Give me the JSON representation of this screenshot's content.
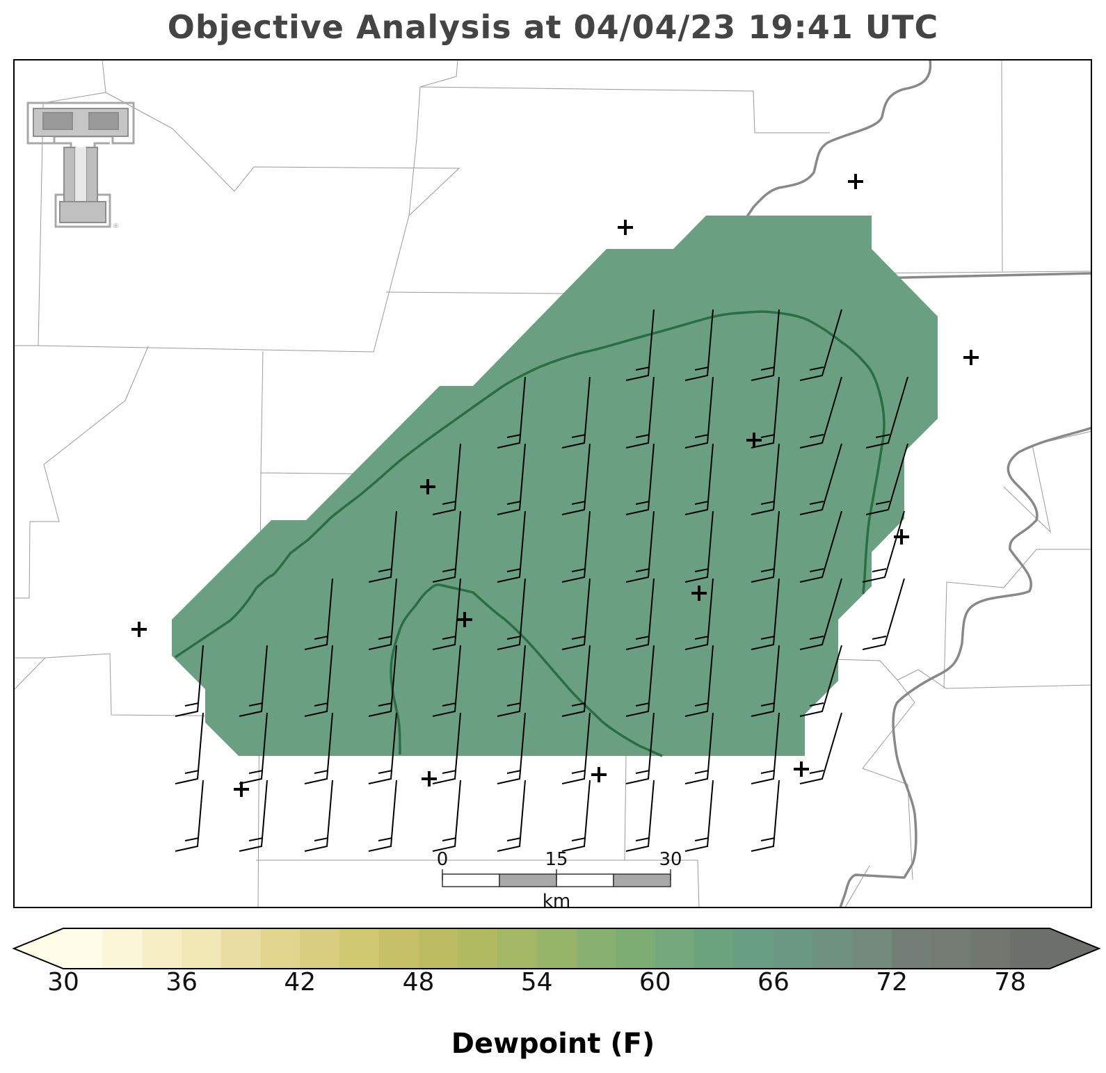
{
  "title": "Objective Analysis at 04/04/23 19:41 UTC",
  "colorbar": {
    "label": "Dewpoint (F)",
    "ticks": [
      "30",
      "36",
      "42",
      "48",
      "54",
      "60",
      "66",
      "72",
      "78"
    ],
    "min": 30,
    "max": 80,
    "step": 2,
    "colors": [
      "#fffde8",
      "#fbf6d8",
      "#f6efc6",
      "#f0e7b4",
      "#e9dea1",
      "#e2d68f",
      "#d9cd7f",
      "#d0c771",
      "#c6c168",
      "#bcbc62",
      "#b1ba61",
      "#a4b764",
      "#96b568",
      "#88b06e",
      "#7cad73",
      "#72a87a",
      "#6ba37f",
      "#679d83",
      "#6a9782",
      "#6f917f",
      "#728a7b",
      "#737f76",
      "#737b72",
      "#71776f",
      "#6c706a"
    ],
    "under_color": "#fffde8",
    "over_color": "#6c706a"
  },
  "scalebar": {
    "ticks": [
      "0",
      "15",
      "30"
    ],
    "unit": "km"
  },
  "analysis": {
    "fill_color": "#6a9f82",
    "fill_color_edge": "#6fa67c",
    "contour_color": "#2a6e44"
  },
  "logo": "texas-tech-double-t-logo",
  "station_marker": "plus-icon"
}
